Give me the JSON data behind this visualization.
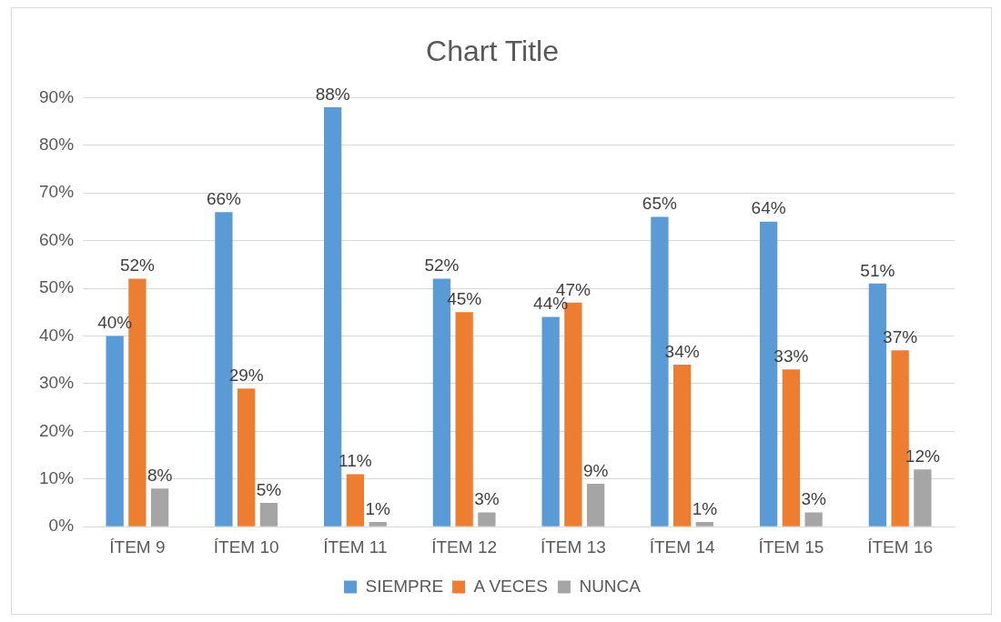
{
  "chart_data": {
    "type": "bar",
    "title": "Chart Title",
    "categories": [
      "ÍTEM 9",
      "ÍTEM 10",
      "ÍTEM 11",
      "ÍTEM 12",
      "ÍTEM 13",
      "ÍTEM 14",
      "ÍTEM 15",
      "ÍTEM 16"
    ],
    "series": [
      {
        "name": "SIEMPRE",
        "color": "#5b9bd5",
        "values": [
          40,
          66,
          88,
          52,
          44,
          65,
          64,
          51
        ],
        "value_labels": [
          "40%",
          "66%",
          "88%",
          "52%",
          "44%",
          "65%",
          "64%",
          "51%"
        ]
      },
      {
        "name": "A VECES",
        "color": "#ed7d31",
        "values": [
          52,
          29,
          11,
          45,
          47,
          34,
          33,
          37
        ],
        "value_labels": [
          "52%",
          "29%",
          "11%",
          "45%",
          "47%",
          "34%",
          "33%",
          "37%"
        ]
      },
      {
        "name": "NUNCA",
        "color": "#a5a5a5",
        "values": [
          8,
          5,
          1,
          3,
          9,
          1,
          3,
          12
        ],
        "value_labels": [
          "8%",
          "5%",
          "1%",
          "3%",
          "9%",
          "1%",
          "3%",
          "12%"
        ]
      }
    ],
    "ylim": [
      0,
      90
    ],
    "yticks": [
      {
        "value": 0,
        "label": "0%"
      },
      {
        "value": 10,
        "label": "10%"
      },
      {
        "value": 20,
        "label": "20%"
      },
      {
        "value": 30,
        "label": "30%"
      },
      {
        "value": 40,
        "label": "40%"
      },
      {
        "value": 50,
        "label": "50%"
      },
      {
        "value": 60,
        "label": "60%"
      },
      {
        "value": 70,
        "label": "70%"
      },
      {
        "value": 80,
        "label": "80%"
      },
      {
        "value": 90,
        "label": "90%"
      }
    ],
    "grid": "y",
    "legend": "bottom"
  }
}
